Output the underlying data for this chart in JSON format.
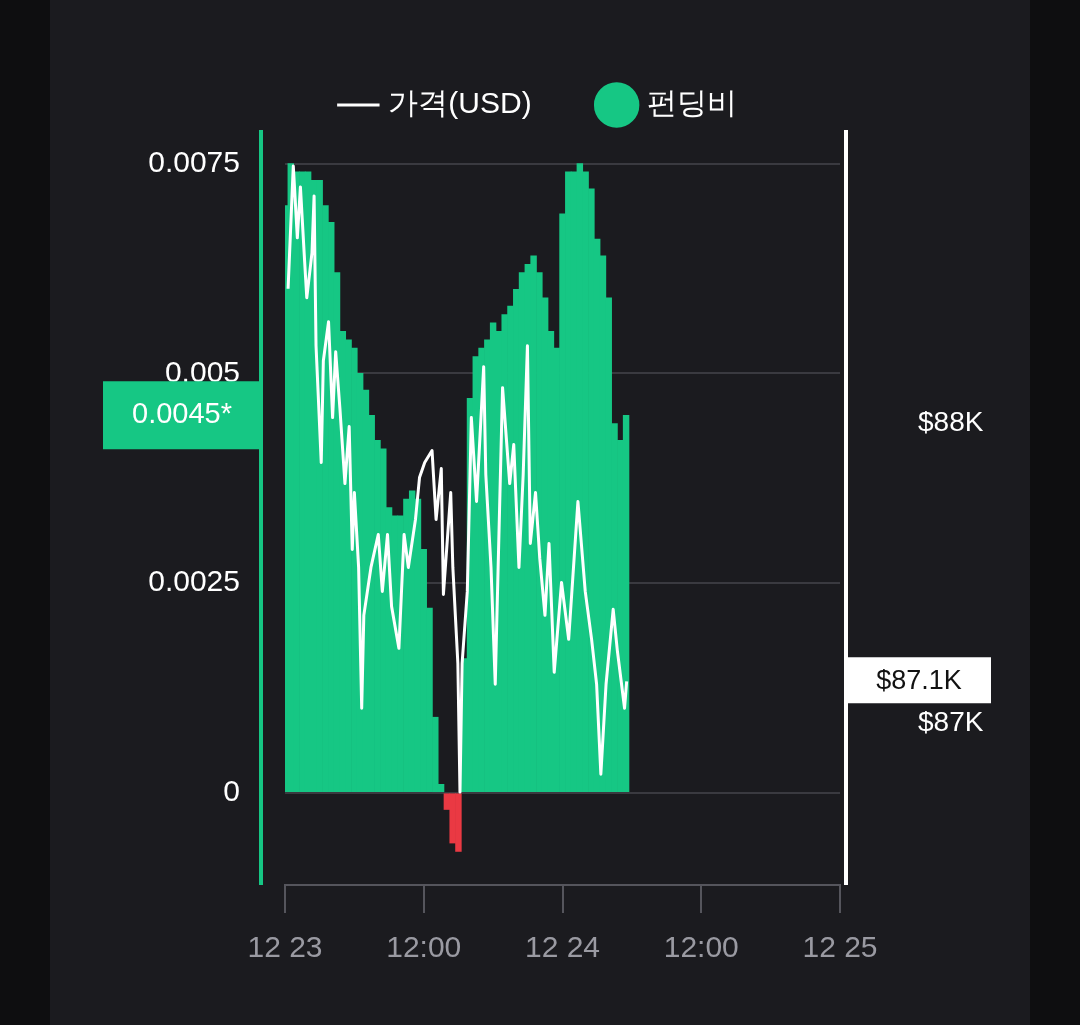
{
  "chart_data": {
    "type": "bar",
    "xlim": [
      "--12-23T00:00",
      "--12-25T00:00"
    ],
    "xticks": [
      {
        "value": "--12-23T00:00",
        "label": "12 23"
      },
      {
        "value": "--12-23T12:00",
        "label": "12:00"
      },
      {
        "value": "--12-24T00:00",
        "label": "12 24"
      },
      {
        "value": "--12-24T12:00",
        "label": "12:00"
      },
      {
        "value": "--12-25T00:00",
        "label": "12 25"
      }
    ],
    "ylim": [
      -0.0011,
      0.0079
    ],
    "yticks": [
      0,
      0.0025,
      0.005,
      0.0075
    ],
    "y2lim": [
      86460,
      88980
    ],
    "y2ticks": [
      {
        "value": 87000,
        "label": "$87K"
      },
      {
        "value": 88000,
        "label": "$88K"
      }
    ],
    "grid": "y",
    "legend": "top",
    "annotations": [
      "0.0045*",
      "$87.1K"
    ],
    "series": [
      {
        "name": "가격(USD)",
        "type": "line",
        "axis": "y2",
        "color": "#ffffff",
        "x": [
          "--12-23T00:16",
          "--12-23T00:43",
          "--12-23T01:04",
          "--12-23T01:20",
          "--12-23T01:42",
          "--12-23T01:53",
          "--12-23T02:20",
          "--12-23T02:31",
          "--12-23T02:41",
          "--12-23T03:08",
          "--12-23T03:19",
          "--12-23T03:46",
          "--12-23T04:07",
          "--12-23T04:23",
          "--12-23T04:45",
          "--12-23T05:11",
          "--12-23T05:33",
          "--12-23T05:49",
          "--12-23T06:00",
          "--12-23T06:22",
          "--12-23T06:38",
          "--12-23T06:49",
          "--12-23T07:26",
          "--12-23T08:04",
          "--12-23T08:25",
          "--12-23T08:52",
          "--12-23T09:13",
          "--12-23T09:51",
          "--12-23T10:18",
          "--12-23T10:40",
          "--12-23T11:17",
          "--12-23T11:38",
          "--12-23T12:05",
          "--12-23T12:43",
          "--12-23T13:04",
          "--12-23T13:31",
          "--12-23T13:42",
          "--12-23T14:20",
          "--12-23T14:31",
          "--12-23T14:57",
          "--12-23T15:08",
          "--12-23T15:19",
          "--12-23T15:46",
          "--12-23T16:07",
          "--12-23T16:34",
          "--12-23T17:11",
          "--12-23T17:22",
          "--12-23T17:49",
          "--12-23T18:11",
          "--12-23T18:49",
          "--12-23T19:26",
          "--12-23T19:47",
          "--12-23T20:14",
          "--12-23T20:36",
          "--12-23T20:58",
          "--12-23T21:13",
          "--12-23T21:40",
          "--12-23T22:02",
          "--12-23T22:29",
          "--12-23T22:50",
          "--12-23T23:17",
          "--12-23T23:55",
          "--12-24T00:32",
          "--12-24T01:20",
          "--12-24T01:58",
          "--12-24T02:31",
          "--12-24T02:57",
          "--12-24T03:19",
          "--12-24T03:46",
          "--12-24T04:23",
          "--12-24T04:45",
          "--12-24T05:22",
          "--12-24T05:33"
        ],
        "values": [
          88450,
          88860,
          88620,
          88790,
          88540,
          88420,
          88570,
          88760,
          88260,
          87870,
          88210,
          88340,
          88020,
          88240,
          88050,
          87800,
          87990,
          87580,
          87770,
          87520,
          87050,
          87360,
          87520,
          87630,
          87440,
          87630,
          87390,
          87250,
          87630,
          87520,
          87680,
          87820,
          87870,
          87910,
          87680,
          87850,
          87430,
          87770,
          87520,
          87200,
          86770,
          87200,
          87440,
          88020,
          87740,
          88190,
          87830,
          87520,
          87130,
          88120,
          87800,
          87930,
          87520,
          87830,
          88260,
          87600,
          87770,
          87550,
          87360,
          87600,
          87170,
          87470,
          87280,
          87740,
          87440,
          87280,
          87130,
          86830,
          87130,
          87380,
          87240,
          87050,
          87140
        ]
      },
      {
        "name": "펀딩비",
        "color": "#16c784",
        "x": [
          "--12-23T00:00",
          "--12-23T00:30",
          "--12-23T01:00",
          "--12-23T01:30",
          "--12-23T02:00",
          "--12-23T02:30",
          "--12-23T03:00",
          "--12-23T03:30",
          "--12-23T04:00",
          "--12-23T04:30",
          "--12-23T05:00",
          "--12-23T05:30",
          "--12-23T06:00",
          "--12-23T06:30",
          "--12-23T07:00",
          "--12-23T07:30",
          "--12-23T08:00",
          "--12-23T08:30",
          "--12-23T09:00",
          "--12-23T09:30",
          "--12-23T10:00",
          "--12-23T10:30",
          "--12-23T11:00",
          "--12-23T11:30",
          "--12-23T12:00",
          "--12-23T12:30",
          "--12-23T13:00",
          "--12-23T13:30",
          "--12-23T14:00",
          "--12-23T14:30",
          "--12-23T15:00",
          "--12-23T15:30",
          "--12-23T16:00",
          "--12-23T16:30",
          "--12-23T17:00",
          "--12-23T17:30",
          "--12-23T18:00",
          "--12-23T18:30",
          "--12-23T19:00",
          "--12-23T19:30",
          "--12-23T20:00",
          "--12-23T20:30",
          "--12-23T21:00",
          "--12-23T21:30",
          "--12-23T22:00",
          "--12-23T22:30",
          "--12-23T23:00",
          "--12-23T23:30",
          "--12-24T00:00",
          "--12-24T00:30",
          "--12-24T01:00",
          "--12-24T01:30",
          "--12-24T02:00",
          "--12-24T02:30",
          "--12-24T03:00",
          "--12-24T03:30",
          "--12-24T04:00",
          "--12-24T04:30",
          "--12-24T05:00",
          "--12-24T05:30"
        ],
        "colors": [
          "#16c784",
          "#16c784",
          "#16c784",
          "#16c784",
          "#16c784",
          "#16c784",
          "#16c784",
          "#16c784",
          "#16c784",
          "#16c784",
          "#16c784",
          "#16c784",
          "#16c784",
          "#16c784",
          "#16c784",
          "#16c784",
          "#16c784",
          "#16c784",
          "#16c784",
          "#16c784",
          "#16c784",
          "#16c784",
          "#16c784",
          "#16c784",
          "#16c784",
          "#16c784",
          "#16c784",
          "#16c784",
          "#ea3943",
          "#ea3943",
          "#ea3943",
          "#16c784",
          "#16c784",
          "#16c784",
          "#16c784",
          "#16c784",
          "#16c784",
          "#16c784",
          "#16c784",
          "#16c784",
          "#16c784",
          "#16c784",
          "#16c784",
          "#16c784",
          "#16c784",
          "#16c784",
          "#16c784",
          "#16c784",
          "#16c784",
          "#16c784",
          "#16c784",
          "#16c784",
          "#16c784",
          "#16c784",
          "#16c784",
          "#16c784",
          "#16c784",
          "#16c784",
          "#16c784",
          "#16c784"
        ],
        "values": [
          0.007,
          0.0075,
          0.0074,
          0.0074,
          0.0074,
          0.0073,
          0.0073,
          0.007,
          0.0068,
          0.0062,
          0.0055,
          0.0054,
          0.0053,
          0.005,
          0.0048,
          0.0045,
          0.0042,
          0.0041,
          0.0034,
          0.0033,
          0.0033,
          0.0035,
          0.0036,
          0.0035,
          0.0029,
          0.0022,
          0.0009,
          0.0001,
          -0.0002,
          -0.0006,
          -0.0007,
          0.0016,
          0.0047,
          0.0052,
          0.0053,
          0.0054,
          0.0056,
          0.0055,
          0.0057,
          0.0058,
          0.006,
          0.0062,
          0.0063,
          0.0064,
          0.0062,
          0.0059,
          0.0055,
          0.0053,
          0.0069,
          0.0074,
          0.0074,
          0.0075,
          0.0074,
          0.0072,
          0.0066,
          0.0064,
          0.0059,
          0.0044,
          0.0042,
          0.0045
        ]
      }
    ]
  }
}
